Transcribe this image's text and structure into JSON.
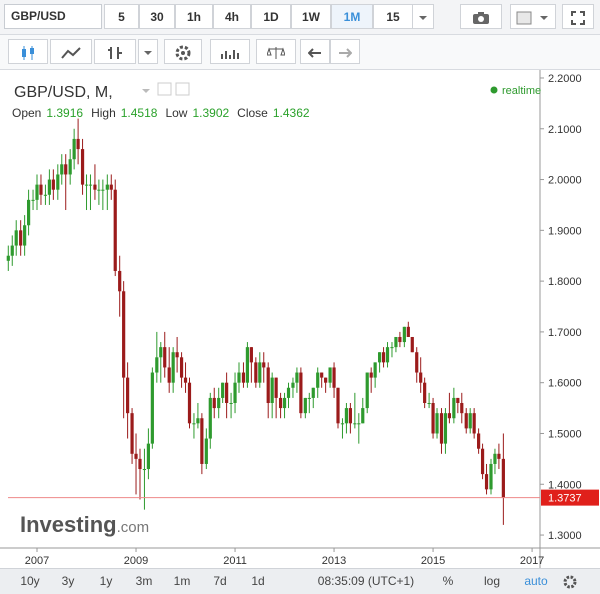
{
  "toolbar": {
    "symbol": "GBP/USD",
    "intervals": [
      "5",
      "30",
      "1h",
      "4h",
      "1D",
      "1W",
      "1M",
      "15"
    ]
  },
  "chart_data": {
    "type": "candlestick",
    "title": "GBP/USD, M,",
    "status": "realtime",
    "header": {
      "labels": [
        "Open",
        "High",
        "Low",
        "Close"
      ],
      "values": [
        1.3916,
        1.4518,
        1.3902,
        1.4362
      ]
    },
    "watermark": [
      "Investing",
      ".com"
    ],
    "x": [
      2006.42,
      2006.5,
      2006.58,
      2006.67,
      2006.75,
      2006.83,
      2006.92,
      2007.0,
      2007.08,
      2007.17,
      2007.25,
      2007.33,
      2007.42,
      2007.5,
      2007.58,
      2007.67,
      2007.75,
      2007.83,
      2007.92,
      2008.0,
      2008.08,
      2008.17,
      2008.25,
      2008.33,
      2008.42,
      2008.5,
      2008.58,
      2008.67,
      2008.75,
      2008.83,
      2008.92,
      2009.0,
      2009.08,
      2009.17,
      2009.25,
      2009.33,
      2009.42,
      2009.5,
      2009.58,
      2009.67,
      2009.75,
      2009.83,
      2009.92,
      2010.0,
      2010.08,
      2010.17,
      2010.25,
      2010.33,
      2010.42,
      2010.5,
      2010.58,
      2010.67,
      2010.75,
      2010.83,
      2010.92,
      2011.0,
      2011.08,
      2011.17,
      2011.25,
      2011.33,
      2011.42,
      2011.5,
      2011.58,
      2011.67,
      2011.75,
      2011.83,
      2011.92,
      2012.0,
      2012.08,
      2012.17,
      2012.25,
      2012.33,
      2012.42,
      2012.5,
      2012.58,
      2012.67,
      2012.75,
      2012.83,
      2012.92,
      2013.0,
      2013.08,
      2013.17,
      2013.25,
      2013.33,
      2013.42,
      2013.5,
      2013.58,
      2013.67,
      2013.75,
      2013.83,
      2013.92,
      2014.0,
      2014.08,
      2014.17,
      2014.25,
      2014.33,
      2014.42,
      2014.5,
      2014.58,
      2014.67,
      2014.75,
      2014.83,
      2014.92,
      2015.0,
      2015.08,
      2015.17,
      2015.25,
      2015.33,
      2015.42,
      2015.5,
      2015.58,
      2015.67,
      2015.75,
      2015.83,
      2015.92,
      2016.0,
      2016.08,
      2016.17,
      2016.25,
      2016.33,
      2016.42
    ],
    "xlim": [
      2006.414,
      2017.16
    ],
    "xticks": [
      2007,
      2009,
      2011,
      2013,
      2015,
      2017
    ],
    "ylim": [
      1.2745,
      2.2157
    ],
    "yticks": [
      {
        "value": 1.3,
        "label": "1.3000"
      },
      {
        "value": 1.4,
        "label": "1.4000"
      },
      {
        "value": 1.5,
        "label": "1.5000"
      },
      {
        "value": 1.6,
        "label": "1.6000"
      },
      {
        "value": 1.7,
        "label": "1.7000"
      },
      {
        "value": 1.8,
        "label": "1.8000"
      },
      {
        "value": 1.9,
        "label": "1.9000"
      },
      {
        "value": 2.0,
        "label": "2.0000"
      },
      {
        "value": 2.1,
        "label": "2.1000"
      },
      {
        "value": 2.2,
        "label": "2.2000"
      }
    ],
    "series": [
      {
        "up_color": "#2e9a2e",
        "down_color": "#9b1b1b",
        "open": [
          1.84,
          1.85,
          1.87,
          1.9,
          1.87,
          1.91,
          1.96,
          1.96,
          1.99,
          1.97,
          1.97,
          2.0,
          1.98,
          2.01,
          2.03,
          2.01,
          2.04,
          2.08,
          2.06,
          1.99,
          1.99,
          1.99,
          1.98,
          1.98,
          1.98,
          1.99,
          1.98,
          1.82,
          1.78,
          1.61,
          1.54,
          1.46,
          1.45,
          1.43,
          1.43,
          1.48,
          1.62,
          1.65,
          1.67,
          1.63,
          1.6,
          1.66,
          1.65,
          1.61,
          1.6,
          1.52,
          1.52,
          1.53,
          1.44,
          1.49,
          1.57,
          1.55,
          1.57,
          1.6,
          1.56,
          1.56,
          1.6,
          1.62,
          1.6,
          1.67,
          1.64,
          1.6,
          1.64,
          1.63,
          1.56,
          1.61,
          1.57,
          1.55,
          1.57,
          1.59,
          1.6,
          1.62,
          1.54,
          1.57,
          1.57,
          1.59,
          1.62,
          1.61,
          1.6,
          1.63,
          1.59,
          1.52,
          1.52,
          1.55,
          1.52,
          1.52,
          1.52,
          1.55,
          1.62,
          1.61,
          1.64,
          1.66,
          1.64,
          1.67,
          1.67,
          1.69,
          1.68,
          1.71,
          1.69,
          1.66,
          1.62,
          1.6,
          1.56,
          1.56,
          1.5,
          1.54,
          1.48,
          1.54,
          1.53,
          1.57,
          1.56,
          1.54,
          1.51,
          1.54,
          1.5,
          1.47,
          1.42,
          1.39,
          1.44,
          1.46,
          1.45
        ],
        "high": [
          1.87,
          1.89,
          1.92,
          1.92,
          1.93,
          1.98,
          1.98,
          2.01,
          2.01,
          1.99,
          2.02,
          2.02,
          2.03,
          2.05,
          2.05,
          2.06,
          2.1,
          2.12,
          2.08,
          2.01,
          2.01,
          2.03,
          2.0,
          2.0,
          2.01,
          2.01,
          2.0,
          1.85,
          1.8,
          1.64,
          1.55,
          1.5,
          1.47,
          1.47,
          1.51,
          1.63,
          1.7,
          1.68,
          1.7,
          1.67,
          1.67,
          1.69,
          1.66,
          1.64,
          1.61,
          1.54,
          1.56,
          1.54,
          1.51,
          1.58,
          1.59,
          1.59,
          1.6,
          1.62,
          1.58,
          1.62,
          1.64,
          1.64,
          1.68,
          1.67,
          1.65,
          1.66,
          1.66,
          1.64,
          1.62,
          1.61,
          1.58,
          1.58,
          1.6,
          1.61,
          1.63,
          1.63,
          1.57,
          1.58,
          1.59,
          1.63,
          1.62,
          1.61,
          1.63,
          1.64,
          1.59,
          1.53,
          1.56,
          1.56,
          1.58,
          1.54,
          1.57,
          1.62,
          1.63,
          1.64,
          1.66,
          1.67,
          1.68,
          1.68,
          1.69,
          1.7,
          1.71,
          1.72,
          1.69,
          1.67,
          1.65,
          1.61,
          1.58,
          1.57,
          1.55,
          1.55,
          1.55,
          1.58,
          1.59,
          1.57,
          1.58,
          1.55,
          1.55,
          1.55,
          1.51,
          1.48,
          1.44,
          1.45,
          1.47,
          1.48,
          1.5
        ],
        "low": [
          1.82,
          1.83,
          1.85,
          1.85,
          1.85,
          1.89,
          1.94,
          1.94,
          1.95,
          1.95,
          1.95,
          1.96,
          1.96,
          1.99,
          1.94,
          1.99,
          2.02,
          2.03,
          1.97,
          1.94,
          1.94,
          1.96,
          1.95,
          1.94,
          1.94,
          1.96,
          1.81,
          1.73,
          1.53,
          1.49,
          1.44,
          1.38,
          1.37,
          1.35,
          1.41,
          1.47,
          1.6,
          1.6,
          1.61,
          1.58,
          1.58,
          1.62,
          1.59,
          1.58,
          1.51,
          1.49,
          1.51,
          1.42,
          1.43,
          1.47,
          1.53,
          1.53,
          1.56,
          1.53,
          1.53,
          1.54,
          1.58,
          1.59,
          1.59,
          1.6,
          1.59,
          1.59,
          1.6,
          1.53,
          1.53,
          1.53,
          1.53,
          1.53,
          1.55,
          1.57,
          1.58,
          1.53,
          1.53,
          1.54,
          1.55,
          1.57,
          1.59,
          1.58,
          1.59,
          1.57,
          1.51,
          1.49,
          1.5,
          1.5,
          1.51,
          1.48,
          1.52,
          1.54,
          1.58,
          1.59,
          1.62,
          1.63,
          1.63,
          1.65,
          1.66,
          1.67,
          1.67,
          1.69,
          1.66,
          1.6,
          1.58,
          1.55,
          1.55,
          1.49,
          1.49,
          1.46,
          1.46,
          1.52,
          1.52,
          1.54,
          1.52,
          1.5,
          1.5,
          1.49,
          1.46,
          1.41,
          1.38,
          1.38,
          1.42,
          1.43,
          1.32
        ],
        "close": [
          1.85,
          1.87,
          1.9,
          1.87,
          1.91,
          1.96,
          1.96,
          1.99,
          1.97,
          1.97,
          2.0,
          1.98,
          2.01,
          2.03,
          2.01,
          2.04,
          2.08,
          2.06,
          1.99,
          1.99,
          1.99,
          1.98,
          1.98,
          1.98,
          1.99,
          1.98,
          1.82,
          1.78,
          1.61,
          1.54,
          1.46,
          1.45,
          1.43,
          1.43,
          1.48,
          1.62,
          1.65,
          1.67,
          1.63,
          1.6,
          1.66,
          1.65,
          1.61,
          1.6,
          1.52,
          1.52,
          1.53,
          1.44,
          1.49,
          1.57,
          1.55,
          1.57,
          1.6,
          1.56,
          1.56,
          1.6,
          1.62,
          1.6,
          1.67,
          1.64,
          1.6,
          1.64,
          1.63,
          1.56,
          1.61,
          1.57,
          1.55,
          1.57,
          1.59,
          1.6,
          1.62,
          1.54,
          1.57,
          1.57,
          1.59,
          1.62,
          1.61,
          1.6,
          1.63,
          1.59,
          1.52,
          1.52,
          1.55,
          1.52,
          1.52,
          1.52,
          1.55,
          1.62,
          1.61,
          1.64,
          1.66,
          1.64,
          1.67,
          1.67,
          1.69,
          1.68,
          1.71,
          1.69,
          1.66,
          1.62,
          1.6,
          1.56,
          1.56,
          1.5,
          1.54,
          1.48,
          1.54,
          1.53,
          1.57,
          1.56,
          1.54,
          1.51,
          1.54,
          1.5,
          1.47,
          1.42,
          1.39,
          1.44,
          1.46,
          1.45,
          1.3737
        ]
      }
    ]
  },
  "footer": {
    "ranges": [
      "10y",
      "3y",
      "1y",
      "3m",
      "1m",
      "7d",
      "1d"
    ],
    "time": "08:35:09 (UTC+1)",
    "options": [
      "%",
      "log",
      "auto"
    ]
  }
}
